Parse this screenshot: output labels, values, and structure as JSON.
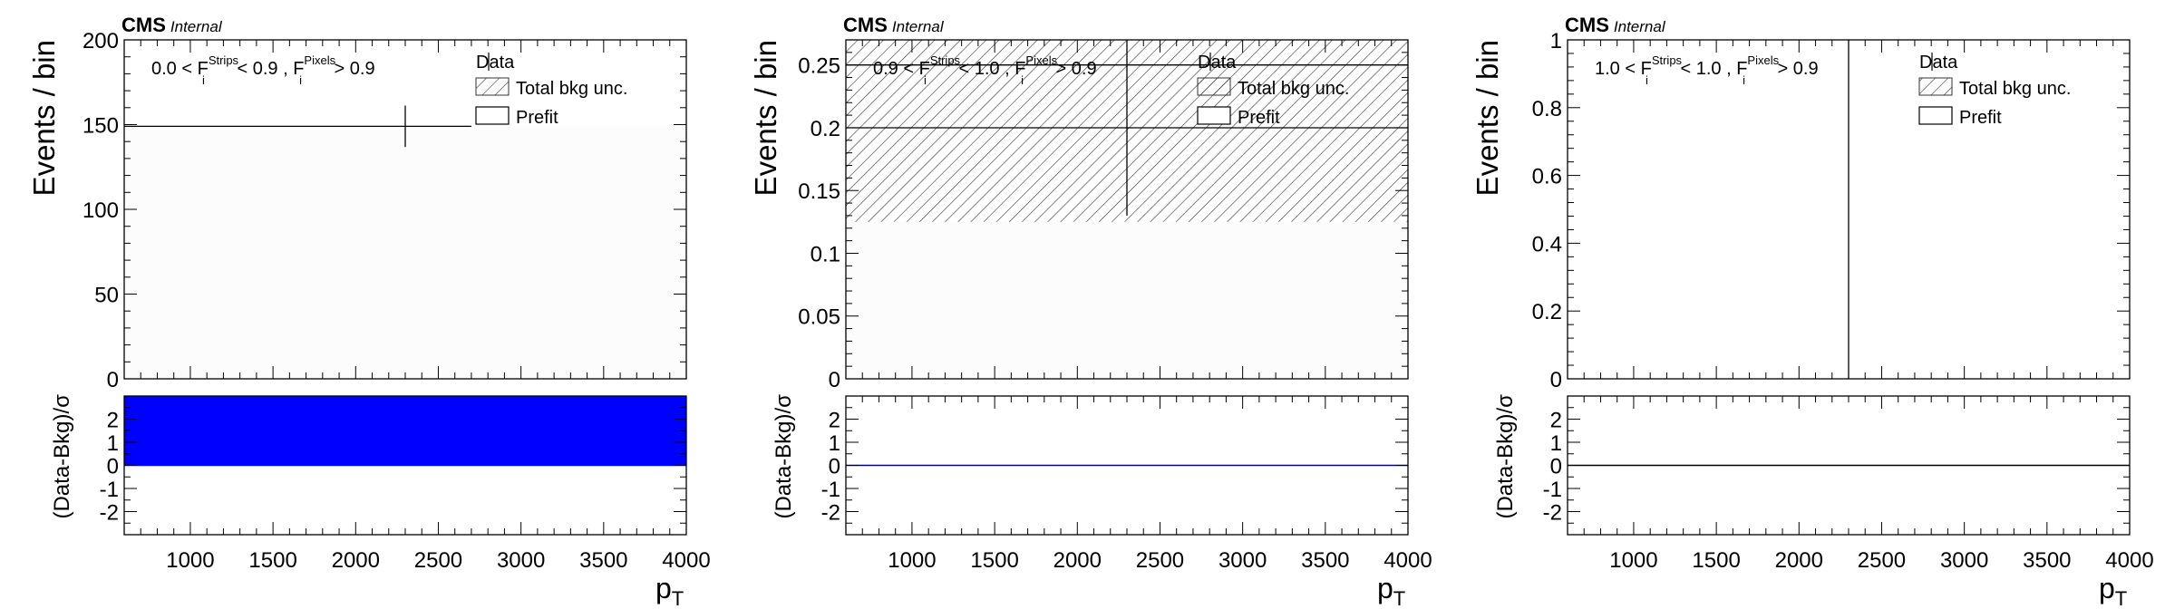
{
  "figure": {
    "experiment": "CMS",
    "status": "Internal"
  },
  "chart_data": [
    {
      "type": "bar",
      "panel": "left",
      "region_label": {
        "a": "0.0 < F",
        "sup1": "Strips",
        "b": " < 0.9 , F",
        "sup2": "Pixels",
        "c": " > 0.9",
        "sub": "i"
      },
      "legend": [
        "Data",
        "Total bkg unc.",
        "Prefit"
      ],
      "legend_placement": "top-right",
      "ylabel": "Events / bin",
      "xlabel": "p",
      "xlabel_sub": "T",
      "xlim": [
        600,
        4000
      ],
      "ylim": [
        0,
        200
      ],
      "yticks": [
        0,
        50,
        100,
        150,
        200
      ],
      "xticks": [
        1000,
        1500,
        2000,
        2500,
        3000,
        3500,
        4000
      ],
      "bkg_fill": "#fcfcfc",
      "bkg_values": [
        {
          "x0": 600,
          "x1": 4000,
          "y": 149
        }
      ],
      "unc_band": null,
      "data_points": [
        {
          "x": 2300,
          "y": 149,
          "yerr": 12.2
        }
      ],
      "data_hline": {
        "x0": 600,
        "x1": 2700,
        "y": 149
      },
      "ratio": {
        "ylabel": "(Data-Bkg)/σ",
        "ylim": [
          -3,
          3
        ],
        "yticks": [
          -2,
          -1,
          0,
          1,
          2
        ],
        "fill_color": "#0000ff",
        "fill_range": [
          0,
          3
        ],
        "line_color": "#0000ff"
      }
    },
    {
      "type": "bar",
      "panel": "middle",
      "region_label": {
        "a": "0.9 < F",
        "sup1": "Strips",
        "b": " < 1.0 , F",
        "sup2": "Pixels",
        "c": " > 0.9",
        "sub": "i"
      },
      "legend": [
        "Data",
        "Total bkg unc.",
        "Prefit"
      ],
      "legend_placement": "top-right",
      "ylabel": "Events / bin",
      "xlabel": "p",
      "xlabel_sub": "T",
      "xlim": [
        600,
        4000
      ],
      "ylim": [
        0,
        0.27
      ],
      "yticks": [
        0,
        0.05,
        0.1,
        0.15,
        0.2,
        0.25
      ],
      "xticks": [
        1000,
        1500,
        2000,
        2500,
        3000,
        3500,
        4000
      ],
      "bkg_fill": "#fcfcfc",
      "bkg_values": [
        {
          "x0": 600,
          "x1": 4000,
          "y": 0.125
        }
      ],
      "unc_band": {
        "x0": 600,
        "x1": 4000,
        "y0": 0.125,
        "y1": 0.27
      },
      "data_points": [
        {
          "x": 2300,
          "y": 0.2,
          "yerr": 0.07
        }
      ],
      "data_hline": {
        "x0": 600,
        "x1": 4000,
        "y": 0.2
      },
      "extra_hline": {
        "x0": 600,
        "x1": 4000,
        "y": 0.25
      },
      "ratio": {
        "ylabel": "(Data-Bkg)/σ",
        "ylim": [
          -3,
          3
        ],
        "yticks": [
          -2,
          -1,
          0,
          1,
          2
        ],
        "fill_color": null,
        "fill_range": null,
        "line_color": "#00008b"
      }
    },
    {
      "type": "bar",
      "panel": "right",
      "region_label": {
        "a": "1.0 < F",
        "sup1": "Strips",
        "b": " < 1.0 , F",
        "sup2": "Pixels",
        "c": " > 0.9",
        "sub": "i"
      },
      "legend": [
        "Data",
        "Total bkg unc.",
        "Prefit"
      ],
      "legend_placement": "top-right",
      "ylabel": "Events / bin",
      "xlabel": "p",
      "xlabel_sub": "T",
      "xlim": [
        600,
        4000
      ],
      "ylim": [
        0,
        1
      ],
      "yticks": [
        0,
        0.2,
        0.4,
        0.6,
        0.8,
        1
      ],
      "xticks": [
        1000,
        1500,
        2000,
        2500,
        3000,
        3500,
        4000
      ],
      "bkg_fill": null,
      "bkg_values": [],
      "unc_band": null,
      "data_points": [
        {
          "x": 2300,
          "y": 0,
          "yerr": 1
        }
      ],
      "data_hline": null,
      "ratio": {
        "ylabel": "(Data-Bkg)/σ",
        "ylim": [
          -3,
          3
        ],
        "yticks": [
          -2,
          -1,
          0,
          1,
          2
        ],
        "fill_color": null,
        "fill_range": null,
        "line_color": "#000000"
      }
    }
  ]
}
